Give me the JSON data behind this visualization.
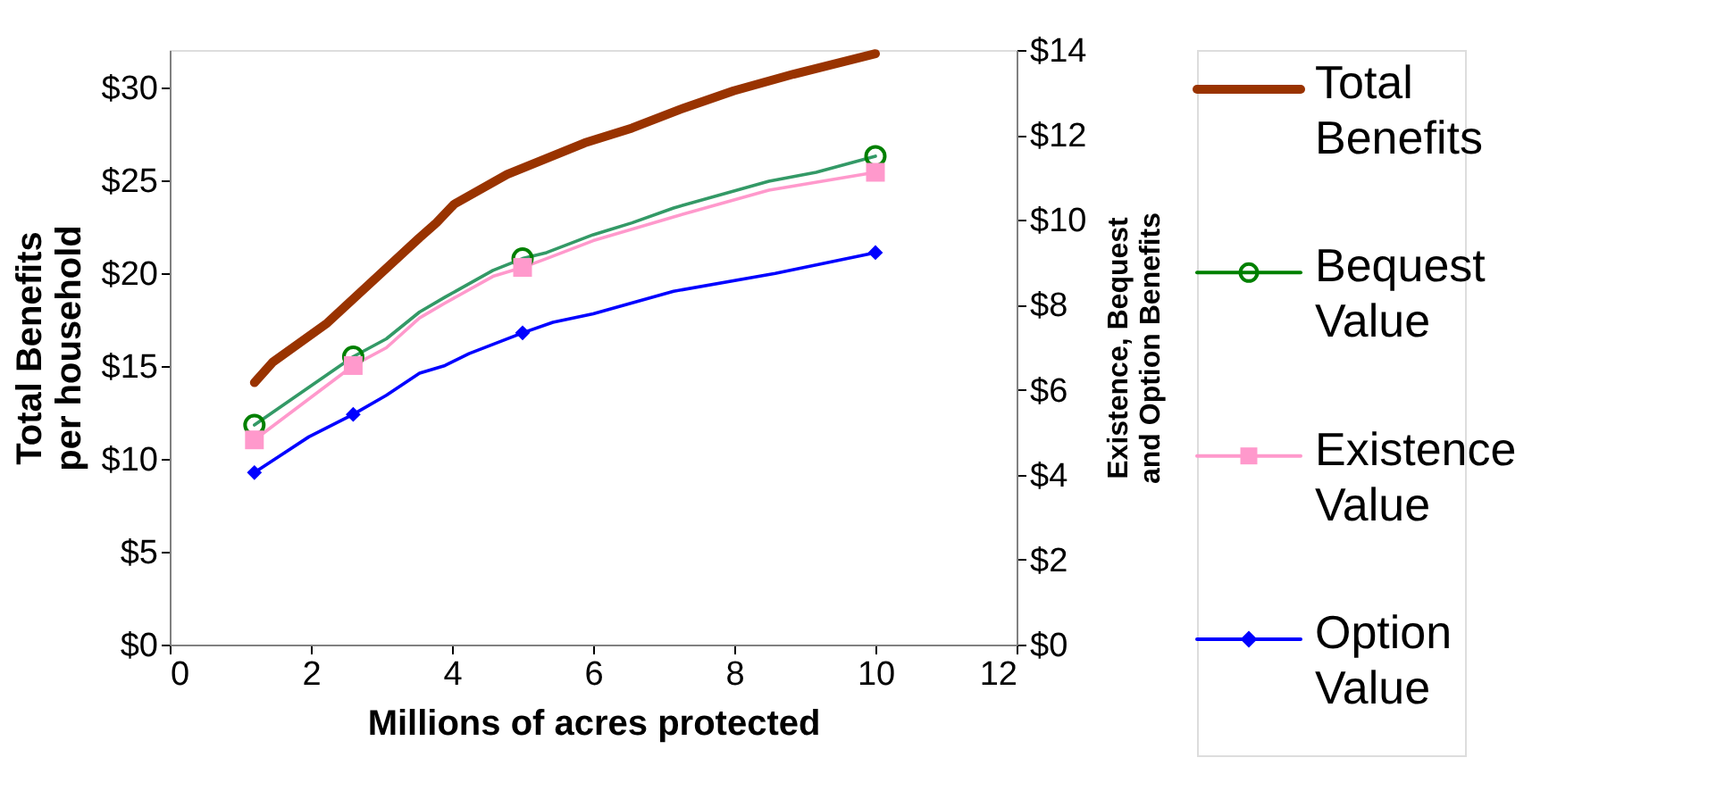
{
  "chart_data": {
    "type": "line",
    "xlabel": "Millions of acres protected",
    "ylabel": "Total Benefits per household",
    "y2label": "Existence, Bequest and Option Benefits",
    "xlim": [
      0,
      12
    ],
    "xticks": [
      0,
      2,
      4,
      6,
      8,
      10,
      12
    ],
    "ylim": [
      0,
      32
    ],
    "yticks": [
      {
        "value": 0,
        "label": "$0"
      },
      {
        "value": 5,
        "label": "$5"
      },
      {
        "value": 10,
        "label": "$10"
      },
      {
        "value": 15,
        "label": "$15"
      },
      {
        "value": 20,
        "label": "$20"
      },
      {
        "value": 25,
        "label": "$25"
      },
      {
        "value": 30,
        "label": "$30"
      }
    ],
    "y2lim": [
      0,
      14
    ],
    "y2ticks": [
      {
        "value": 0,
        "label": "$0"
      },
      {
        "value": 2,
        "label": "$2"
      },
      {
        "value": 4,
        "label": "$4"
      },
      {
        "value": 6,
        "label": "$6"
      },
      {
        "value": 8,
        "label": "$8"
      },
      {
        "value": 10,
        "label": "$10"
      },
      {
        "value": 12,
        "label": "$12"
      },
      {
        "value": 14,
        "label": "$14"
      }
    ],
    "grid": false,
    "legend": "right",
    "series": [
      {
        "name": "Total Benefits",
        "color": "#993300",
        "x": [
          1.2,
          1.46,
          2.23,
          3.54,
          3.78,
          4.03,
          4.78,
          5.88,
          6.55,
          7.23,
          7.99,
          8.84,
          10
        ],
        "values": [
          14.1,
          15.2,
          17.3,
          21.9,
          22.7,
          23.7,
          25.3,
          27.0,
          27.8,
          28.8,
          29.8,
          30.7,
          31.8
        ]
      },
      {
        "axis": "y2",
        "color": "#339966",
        "x": [
          1.2,
          2.6,
          3.07,
          3.54,
          3.9,
          4.58,
          5,
          5.34,
          6.0,
          6.55,
          7.14,
          8.49,
          9.16,
          10
        ],
        "values": [
          5.17,
          6.78,
          7.2,
          7.83,
          8.18,
          8.81,
          9.09,
          9.23,
          9.65,
          9.93,
          10.28,
          10.91,
          11.12,
          11.5
        ]
      },
      {
        "axis": "y2",
        "color": "#ff99cc",
        "x": [
          1.2,
          2.6,
          3.07,
          3.54,
          3.9,
          4.58,
          5,
          5.34,
          6.0,
          7.14,
          8.49,
          10
        ],
        "values": [
          4.82,
          6.57,
          6.99,
          7.69,
          8.04,
          8.67,
          8.88,
          9.09,
          9.51,
          10.07,
          10.7,
          11.12
        ]
      },
      {
        "axis": "y2",
        "color": "#0000ff",
        "x": [
          1.2,
          1.97,
          2.6,
          3.07,
          3.54,
          3.9,
          4.24,
          5,
          5.43,
          6.0,
          7.14,
          8.58,
          10
        ],
        "values": [
          4.05,
          4.89,
          5.42,
          5.87,
          6.39,
          6.57,
          6.85,
          7.34,
          7.59,
          7.79,
          8.32,
          8.74,
          9.23
        ]
      },
      {
        "name": "Bequest Value",
        "type": "scatter",
        "axis": "y2",
        "marker": "circle",
        "color": "#008000",
        "x": [
          1.2,
          2.6,
          5,
          10
        ],
        "values": [
          5.17,
          6.78,
          9.09,
          11.5
        ]
      },
      {
        "name": "Existence Value",
        "type": "scatter",
        "axis": "y2",
        "marker": "square",
        "color": "#ff99cc",
        "x": [
          1.2,
          2.6,
          5,
          10
        ],
        "values": [
          4.82,
          6.57,
          8.88,
          11.12
        ]
      },
      {
        "name": "Option Value",
        "type": "scatter",
        "axis": "y2",
        "marker": "diamond",
        "color": "#0000ff",
        "x": [
          1.2,
          2.6,
          5,
          10
        ],
        "values": [
          4.05,
          5.42,
          7.34,
          9.23
        ]
      }
    ]
  }
}
